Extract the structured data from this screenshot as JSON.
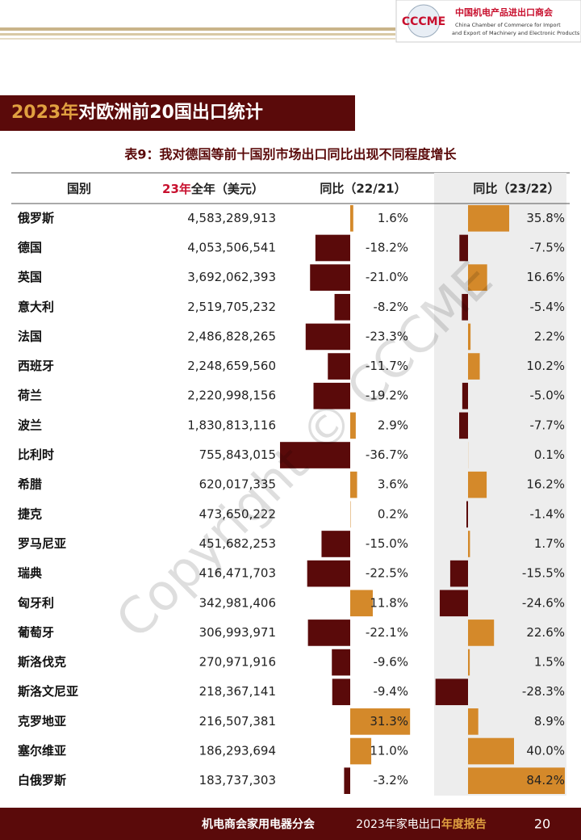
{
  "header": {
    "logo_mark": "CCCME",
    "org_name": "中国机电产品进出口商会",
    "org_en_1": "China Chamber of Commerce for Import",
    "org_en_2": "and Export of Machinery and Electronic Products"
  },
  "section_title": {
    "year": "2023年",
    "text": "对欧洲前20国出口统计"
  },
  "table": {
    "caption": "表9：我对德国等前十国别市场出口同比出现不同程度增长",
    "columns": {
      "country": "国别",
      "exports_year": "23年",
      "exports_rest": "全年（美元）",
      "yoy_22_21": "同比（22/21）",
      "yoy_23_22": "同比（23/22）"
    },
    "rows": [
      {
        "country": "俄罗斯",
        "exports": "4,583,289,913",
        "yoy_22_21": {
          "value": 1.6,
          "label": "1.6%"
        },
        "yoy_23_22": {
          "value": 35.8,
          "label": "35.8%"
        }
      },
      {
        "country": "德国",
        "exports": "4,053,506,541",
        "yoy_22_21": {
          "value": -18.2,
          "label": "-18.2%"
        },
        "yoy_23_22": {
          "value": -7.5,
          "label": "-7.5%"
        }
      },
      {
        "country": "英国",
        "exports": "3,692,062,393",
        "yoy_22_21": {
          "value": -21.0,
          "label": "-21.0%"
        },
        "yoy_23_22": {
          "value": 16.6,
          "label": "16.6%"
        }
      },
      {
        "country": "意大利",
        "exports": "2,519,705,232",
        "yoy_22_21": {
          "value": -8.2,
          "label": "-8.2%"
        },
        "yoy_23_22": {
          "value": -5.4,
          "label": "-5.4%"
        }
      },
      {
        "country": "法国",
        "exports": "2,486,828,265",
        "yoy_22_21": {
          "value": -23.3,
          "label": "-23.3%"
        },
        "yoy_23_22": {
          "value": 2.2,
          "label": "2.2%"
        }
      },
      {
        "country": "西班牙",
        "exports": "2,248,659,560",
        "yoy_22_21": {
          "value": -11.7,
          "label": "-11.7%"
        },
        "yoy_23_22": {
          "value": 10.2,
          "label": "10.2%"
        }
      },
      {
        "country": "荷兰",
        "exports": "2,220,998,156",
        "yoy_22_21": {
          "value": -19.2,
          "label": "-19.2%"
        },
        "yoy_23_22": {
          "value": -5.0,
          "label": "-5.0%"
        }
      },
      {
        "country": "波兰",
        "exports": "1,830,813,116",
        "yoy_22_21": {
          "value": 2.9,
          "label": "2.9%"
        },
        "yoy_23_22": {
          "value": -7.7,
          "label": "-7.7%"
        }
      },
      {
        "country": "比利时",
        "exports": "755,843,015",
        "yoy_22_21": {
          "value": -36.7,
          "label": "-36.7%"
        },
        "yoy_23_22": {
          "value": 0.1,
          "label": "0.1%"
        }
      },
      {
        "country": "希腊",
        "exports": "620,017,335",
        "yoy_22_21": {
          "value": 3.6,
          "label": "3.6%"
        },
        "yoy_23_22": {
          "value": 16.2,
          "label": "16.2%"
        }
      },
      {
        "country": "捷克",
        "exports": "473,650,222",
        "yoy_22_21": {
          "value": 0.2,
          "label": "0.2%"
        },
        "yoy_23_22": {
          "value": -1.4,
          "label": "-1.4%"
        }
      },
      {
        "country": "罗马尼亚",
        "exports": "451,682,253",
        "yoy_22_21": {
          "value": -15.0,
          "label": "-15.0%"
        },
        "yoy_23_22": {
          "value": 1.7,
          "label": "1.7%"
        }
      },
      {
        "country": "瑞典",
        "exports": "416,471,703",
        "yoy_22_21": {
          "value": -22.5,
          "label": "-22.5%"
        },
        "yoy_23_22": {
          "value": -15.5,
          "label": "-15.5%"
        }
      },
      {
        "country": "匈牙利",
        "exports": "342,981,406",
        "yoy_22_21": {
          "value": 11.8,
          "label": "11.8%"
        },
        "yoy_23_22": {
          "value": -24.6,
          "label": "-24.6%"
        }
      },
      {
        "country": "葡萄牙",
        "exports": "306,993,971",
        "yoy_22_21": {
          "value": -22.1,
          "label": "-22.1%"
        },
        "yoy_23_22": {
          "value": 22.6,
          "label": "22.6%"
        }
      },
      {
        "country": "斯洛伐克",
        "exports": "270,971,916",
        "yoy_22_21": {
          "value": -9.6,
          "label": "-9.6%"
        },
        "yoy_23_22": {
          "value": 1.5,
          "label": "1.5%"
        }
      },
      {
        "country": "斯洛文尼亚",
        "exports": "218,367,141",
        "yoy_22_21": {
          "value": -9.4,
          "label": "-9.4%"
        },
        "yoy_23_22": {
          "value": -28.3,
          "label": "-28.3%"
        }
      },
      {
        "country": "克罗地亚",
        "exports": "216,507,381",
        "yoy_22_21": {
          "value": 31.3,
          "label": "31.3%"
        },
        "yoy_23_22": {
          "value": 8.9,
          "label": "8.9%"
        }
      },
      {
        "country": "塞尔维亚",
        "exports": "186,293,694",
        "yoy_22_21": {
          "value": 11.0,
          "label": "11.0%"
        },
        "yoy_23_22": {
          "value": 40.0,
          "label": "40.0%"
        }
      },
      {
        "country": "白俄罗斯",
        "exports": "183,737,303",
        "yoy_22_21": {
          "value": -3.2,
          "label": "-3.2%"
        },
        "yoy_23_22": {
          "value": 84.2,
          "label": "84.2%"
        }
      }
    ]
  },
  "watermark": "Copyright © CCCME",
  "footer": {
    "branch": "机电商会家用电器分会",
    "report_prefix": "2023年家电出口",
    "report_suffix": "年度报告",
    "page": "20"
  }
}
